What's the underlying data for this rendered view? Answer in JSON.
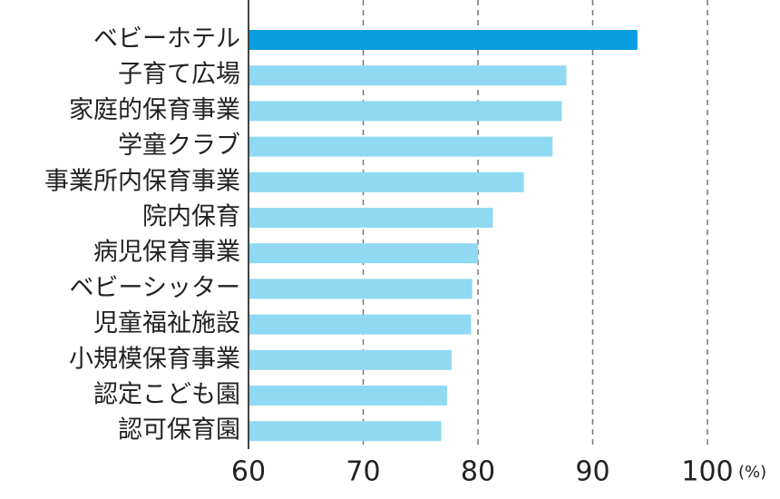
{
  "chart_data": {
    "type": "bar",
    "orientation": "horizontal",
    "categories": [
      "ベビーホテル",
      "子育て広場",
      "家庭的保育事業",
      "学童クラブ",
      "事業所内保育事業",
      "院内保育",
      "病児保育事業",
      "ベビーシッター",
      "児童福祉施設",
      "小規模保育事業",
      "認定こども園",
      "認可保育園"
    ],
    "values": [
      93.9,
      87.7,
      87.3,
      86.5,
      84.0,
      81.3,
      80.0,
      79.5,
      79.4,
      77.7,
      77.3,
      76.8
    ],
    "colors": [
      "#0a9de2",
      "#8fd9f2",
      "#8fd9f2",
      "#8fd9f2",
      "#8fd9f2",
      "#8fd9f2",
      "#8fd9f2",
      "#8fd9f2",
      "#8fd9f2",
      "#8fd9f2",
      "#8fd9f2",
      "#8fd9f2"
    ],
    "xlim": [
      60,
      100
    ],
    "xticks": [
      60,
      70,
      80,
      90,
      100
    ],
    "x_unit": "(%)",
    "grid": true
  }
}
